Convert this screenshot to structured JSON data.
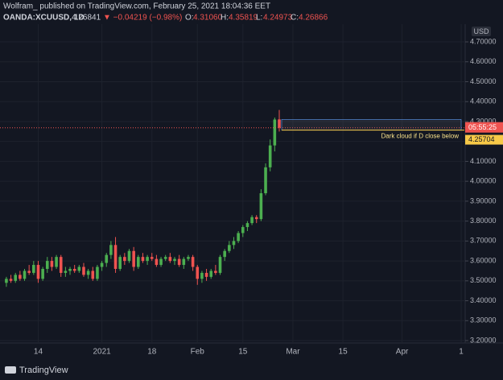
{
  "header": {
    "publisher": "Wolfram_ published on TradingView.com, February 25, 2021 18:04:36 EET",
    "symbol": "OANDA:XCUUSD, 1D",
    "last": "4.26841",
    "change": "▼ −0.04219 (−0.98%)",
    "o_label": "O:",
    "o": "4.31060",
    "h_label": "H:",
    "h": "4.35819",
    "l_label": "L:",
    "l": "4.24973",
    "c_label": "C:",
    "c": "4.26866"
  },
  "footer": {
    "brand": "TradingView"
  },
  "chart_data": {
    "type": "candlestick",
    "currency": "USD",
    "up_color": "#4caf50",
    "down_color": "#ef5350",
    "open": [
      3.49,
      3.51,
      3.5,
      3.53,
      3.51,
      3.55,
      3.54,
      3.58,
      3.51,
      3.56,
      3.6,
      3.57,
      3.62,
      3.54,
      3.55,
      3.56,
      3.55,
      3.57,
      3.53,
      3.55,
      3.51,
      3.57,
      3.59,
      3.63,
      3.68,
      3.56,
      3.62,
      3.6,
      3.65,
      3.57,
      3.62,
      3.6,
      3.62,
      3.61,
      3.58,
      3.61,
      3.62,
      3.6,
      3.61,
      3.58,
      3.61,
      3.62,
      3.57,
      3.51,
      3.54,
      3.52,
      3.55,
      3.54,
      3.62,
      3.65,
      3.68,
      3.7,
      3.74,
      3.77,
      3.79,
      3.82,
      3.81,
      3.94,
      4.07,
      4.18,
      4.3106
    ],
    "high": [
      3.52,
      3.53,
      3.54,
      3.55,
      3.56,
      3.58,
      3.6,
      3.6,
      3.57,
      3.62,
      3.62,
      3.63,
      3.63,
      3.57,
      3.57,
      3.58,
      3.58,
      3.59,
      3.56,
      3.57,
      3.58,
      3.6,
      3.64,
      3.7,
      3.72,
      3.63,
      3.64,
      3.66,
      3.67,
      3.63,
      3.64,
      3.63,
      3.64,
      3.63,
      3.62,
      3.63,
      3.64,
      3.62,
      3.63,
      3.62,
      3.63,
      3.63,
      3.58,
      3.55,
      3.56,
      3.56,
      3.58,
      3.63,
      3.66,
      3.7,
      3.72,
      3.75,
      3.78,
      3.8,
      3.83,
      3.83,
      3.96,
      4.09,
      4.21,
      4.32,
      4.35819
    ],
    "low": [
      3.47,
      3.49,
      3.49,
      3.5,
      3.5,
      3.53,
      3.53,
      3.49,
      3.5,
      3.54,
      3.55,
      3.56,
      3.52,
      3.52,
      3.53,
      3.54,
      3.54,
      3.52,
      3.51,
      3.5,
      3.5,
      3.55,
      3.57,
      3.61,
      3.54,
      3.55,
      3.58,
      3.59,
      3.55,
      3.56,
      3.59,
      3.58,
      3.6,
      3.57,
      3.57,
      3.6,
      3.59,
      3.58,
      3.57,
      3.56,
      3.6,
      3.55,
      3.48,
      3.49,
      3.5,
      3.51,
      3.53,
      3.53,
      3.6,
      3.64,
      3.66,
      3.69,
      3.72,
      3.75,
      3.78,
      3.79,
      3.8,
      3.93,
      4.05,
      4.15,
      4.24973
    ],
    "close": [
      3.51,
      3.5,
      3.53,
      3.51,
      3.55,
      3.54,
      3.58,
      3.51,
      3.56,
      3.6,
      3.57,
      3.62,
      3.54,
      3.55,
      3.56,
      3.55,
      3.57,
      3.53,
      3.55,
      3.51,
      3.57,
      3.59,
      3.63,
      3.68,
      3.56,
      3.62,
      3.6,
      3.65,
      3.57,
      3.62,
      3.6,
      3.62,
      3.61,
      3.58,
      3.61,
      3.62,
      3.6,
      3.61,
      3.58,
      3.61,
      3.62,
      3.57,
      3.51,
      3.54,
      3.52,
      3.55,
      3.54,
      3.62,
      3.65,
      3.68,
      3.7,
      3.74,
      3.77,
      3.79,
      3.82,
      3.81,
      3.94,
      4.07,
      4.18,
      4.31,
      4.26866
    ],
    "xlim": [
      -1.4,
      100.7
    ],
    "xticks": [
      {
        "value": 7,
        "label": "14"
      },
      {
        "value": 21,
        "label": "2021"
      },
      {
        "value": 32,
        "label": "18"
      },
      {
        "value": 42,
        "label": "Feb"
      },
      {
        "value": 52,
        "label": "15"
      },
      {
        "value": 63,
        "label": "Mar"
      },
      {
        "value": 74,
        "label": "15"
      },
      {
        "value": 87,
        "label": "Apr"
      },
      {
        "value": 100,
        "label": "1"
      }
    ],
    "ylim": [
      3.188,
      4.789
    ],
    "yticks": [
      {
        "value": 3.2,
        "label": "3.20000"
      },
      {
        "value": 3.3,
        "label": "3.30000"
      },
      {
        "value": 3.4,
        "label": "3.40000"
      },
      {
        "value": 3.5,
        "label": "3.50000"
      },
      {
        "value": 3.6,
        "label": "3.60000"
      },
      {
        "value": 3.7,
        "label": "3.70000"
      },
      {
        "value": 3.8,
        "label": "3.80000"
      },
      {
        "value": 3.9,
        "label": "3.90000"
      },
      {
        "value": 4.0,
        "label": "4.00000"
      },
      {
        "value": 4.1,
        "label": "4.10000"
      },
      {
        "value": 4.2,
        "label": "4.20000"
      },
      {
        "value": 4.3,
        "label": "4.30000"
      },
      {
        "value": 4.4,
        "label": "4.40000"
      },
      {
        "value": 4.5,
        "label": "4.50000"
      },
      {
        "value": 4.6,
        "label": "4.60000"
      },
      {
        "value": 4.7,
        "label": "4.70000"
      }
    ],
    "countdown": "05:55:25",
    "alert_level": 4.25704,
    "annotation": "Dark cloud if D close below"
  }
}
